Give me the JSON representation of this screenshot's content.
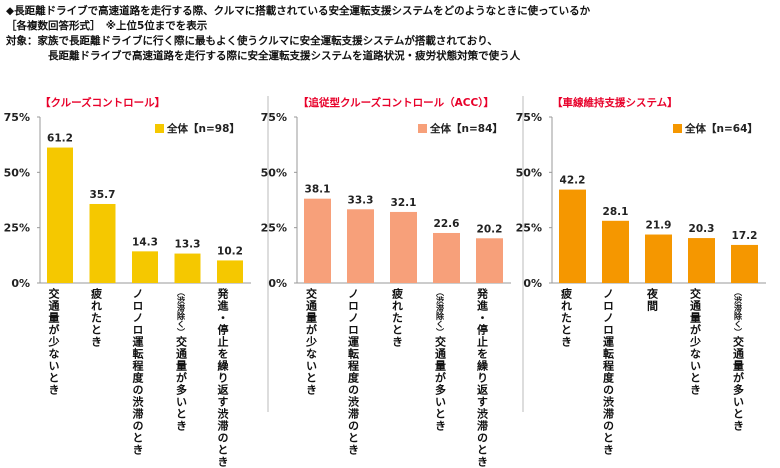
{
  "header": {
    "line1": "◆長距離ドライブで高速道路を走行する際、クルマに搭載されている安全運転支援システムをどのようなときに使っているか",
    "line2": "［各複数回答形式］　※上位5位までを表示",
    "line3": "対象：家族で長距離ドライブに行く際に最もよく使うクルマに安全運転支援システムが搭載されており、",
    "line4": "長距離ドライブで高速道路を走行する際に安全運転支援システムを道路状況・疲労状態対策で使う人"
  },
  "colors": {
    "cruise": "#f5c800",
    "acc": "#f7a07a",
    "lane": "#f59700",
    "title_red": "#e8002a",
    "divider": "#bbbbbb",
    "axis": "#999999"
  },
  "chart_data": [
    {
      "type": "bar",
      "title": "【クルーズコントロール】",
      "legend": "全体【n=98】",
      "yticks": [
        "75%",
        "50%",
        "25%",
        "0%"
      ],
      "ylim": [
        0,
        75
      ],
      "categories": [
        {
          "label": "交通量が少ないとき",
          "note": ""
        },
        {
          "label": "疲れたとき",
          "note": ""
        },
        {
          "label": "ノロノロ運転程度の渋滞のとき",
          "note": ""
        },
        {
          "label": "交通量が多いとき",
          "note": "（渋滞除く）"
        },
        {
          "label": "発進・停止を繰り返す渋滞のとき",
          "note": ""
        }
      ],
      "values": [
        61.2,
        35.7,
        14.3,
        13.3,
        10.2
      ],
      "labels": [
        "61.2",
        "35.7",
        "14.3",
        "13.3",
        "10.2"
      ]
    },
    {
      "type": "bar",
      "title": "【追従型クルーズコントロール（ACC）】",
      "legend": "全体【n=84】",
      "yticks": [
        "75%",
        "50%",
        "25%",
        "0%"
      ],
      "ylim": [
        0,
        75
      ],
      "categories": [
        {
          "label": "交通量が少ないとき",
          "note": ""
        },
        {
          "label": "ノロノロ運転程度の渋滞のとき",
          "note": ""
        },
        {
          "label": "疲れたとき",
          "note": ""
        },
        {
          "label": "交通量が多いとき",
          "note": "（渋滞除く）"
        },
        {
          "label": "発進・停止を繰り返す渋滞のとき",
          "note": ""
        }
      ],
      "values": [
        38.1,
        33.3,
        32.1,
        22.6,
        20.2
      ],
      "labels": [
        "38.1",
        "33.3",
        "32.1",
        "22.6",
        "20.2"
      ]
    },
    {
      "type": "bar",
      "title": "【車線維持支援システム】",
      "legend": "全体【n=64】",
      "yticks": [
        "75%",
        "50%",
        "25%",
        "0%"
      ],
      "ylim": [
        0,
        75
      ],
      "categories": [
        {
          "label": "疲れたとき",
          "note": ""
        },
        {
          "label": "ノロノロ運転程度の渋滞のとき",
          "note": ""
        },
        {
          "label": "夜間",
          "note": ""
        },
        {
          "label": "交通量が少ないとき",
          "note": ""
        },
        {
          "label": "交通量が多いとき",
          "note": "（渋滞除く）"
        }
      ],
      "values": [
        42.2,
        28.1,
        21.9,
        20.3,
        17.2
      ],
      "labels": [
        "42.2",
        "28.1",
        "21.9",
        "20.3",
        "17.2"
      ]
    }
  ]
}
